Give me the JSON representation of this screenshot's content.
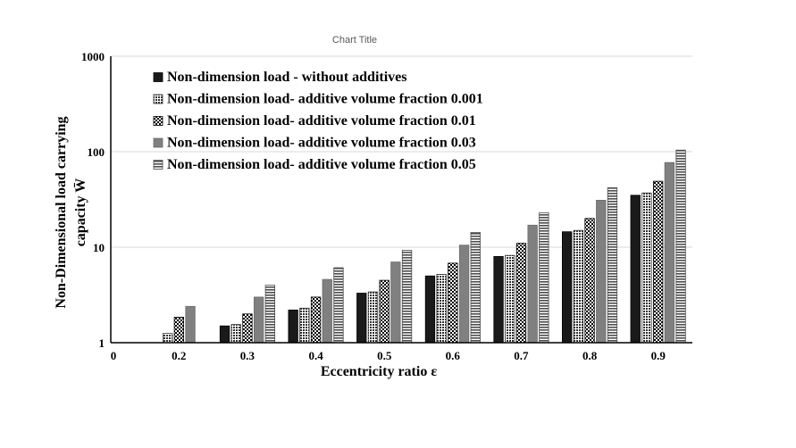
{
  "chart_data": {
    "type": "bar",
    "title": "Chart Title",
    "xlabel": "Eccentricity ratio ε",
    "ylabel_line1": "Non-Dimensional  load carrying",
    "ylabel_line2": "capacity W̄",
    "yscale": "log",
    "ylim": [
      1,
      1000
    ],
    "yticks": [
      "1",
      "10",
      "100",
      "1000"
    ],
    "x_origin_label": "0",
    "categories": [
      "0.2",
      "0.3",
      "0.4",
      "0.5",
      "0.6",
      "0.7",
      "0.8",
      "0.9"
    ],
    "legend_position": "top-left",
    "series": [
      {
        "name": "Non-dimension load - without additives",
        "pattern": "solid",
        "color": "#1a1a1a",
        "values": [
          1.0,
          1.5,
          2.2,
          3.3,
          5.0,
          8.0,
          14.5,
          35
        ]
      },
      {
        "name": "Non-dimension load- additive volume fraction 0.001",
        "pattern": "dots",
        "color": "#333333",
        "values": [
          1.25,
          1.55,
          2.3,
          3.4,
          5.2,
          8.2,
          15.0,
          37
        ]
      },
      {
        "name": "Non-dimension load- additive volume fraction 0.01",
        "pattern": "checker",
        "color": "#111111",
        "values": [
          1.85,
          2.0,
          3.0,
          4.5,
          6.8,
          11.0,
          20.0,
          49
        ]
      },
      {
        "name": "Non-dimension load- additive volume fraction 0.03",
        "pattern": "gray",
        "color": "#808080",
        "values": [
          2.4,
          3.0,
          4.6,
          7.0,
          10.5,
          17.0,
          31.0,
          77
        ]
      },
      {
        "name": "Non-dimension load- additive volume fraction 0.05",
        "pattern": "hstripes",
        "color": "#555555",
        "values": [
          null,
          4.0,
          6.1,
          9.3,
          14.3,
          23.0,
          42.0,
          104
        ]
      }
    ]
  }
}
